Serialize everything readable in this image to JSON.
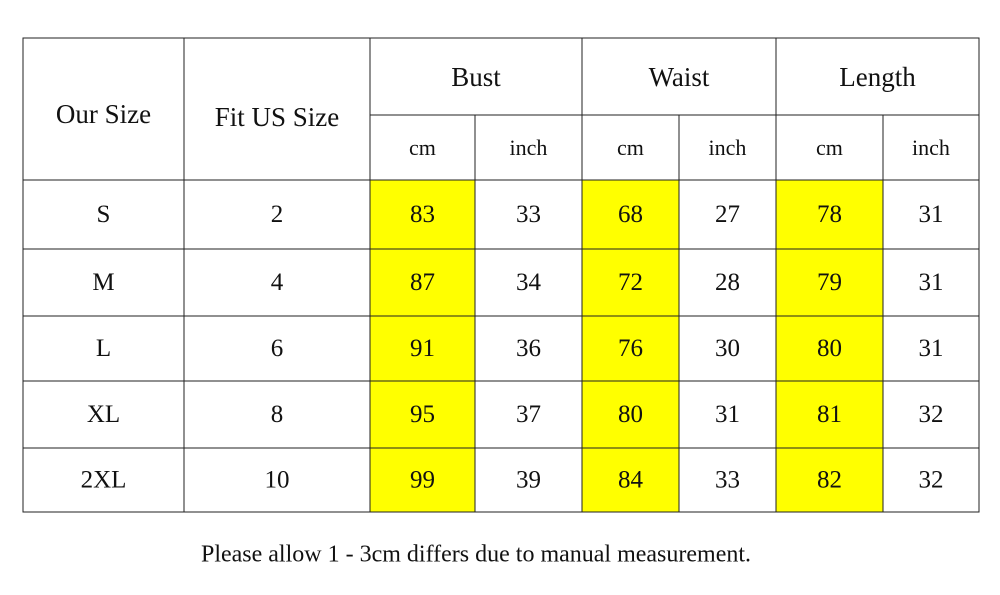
{
  "table": {
    "headers": {
      "our_size": "Our Size",
      "fit_us_size": "Fit US Size",
      "groups": [
        "Bust",
        "Waist",
        "Length"
      ],
      "units": [
        "cm",
        "inch",
        "cm",
        "inch",
        "cm",
        "inch"
      ]
    },
    "rows": [
      [
        "S",
        2,
        83,
        33,
        68,
        27,
        78,
        31
      ],
      [
        "M",
        4,
        87,
        34,
        72,
        28,
        79,
        31
      ],
      [
        "L",
        6,
        91,
        36,
        76,
        30,
        80,
        31
      ],
      [
        "XL",
        8,
        95,
        37,
        80,
        31,
        81,
        32
      ],
      [
        "2XL",
        10,
        99,
        39,
        84,
        33,
        82,
        32
      ]
    ]
  },
  "note": "Please allow 1 - 3cm differs due to manual measurement."
}
